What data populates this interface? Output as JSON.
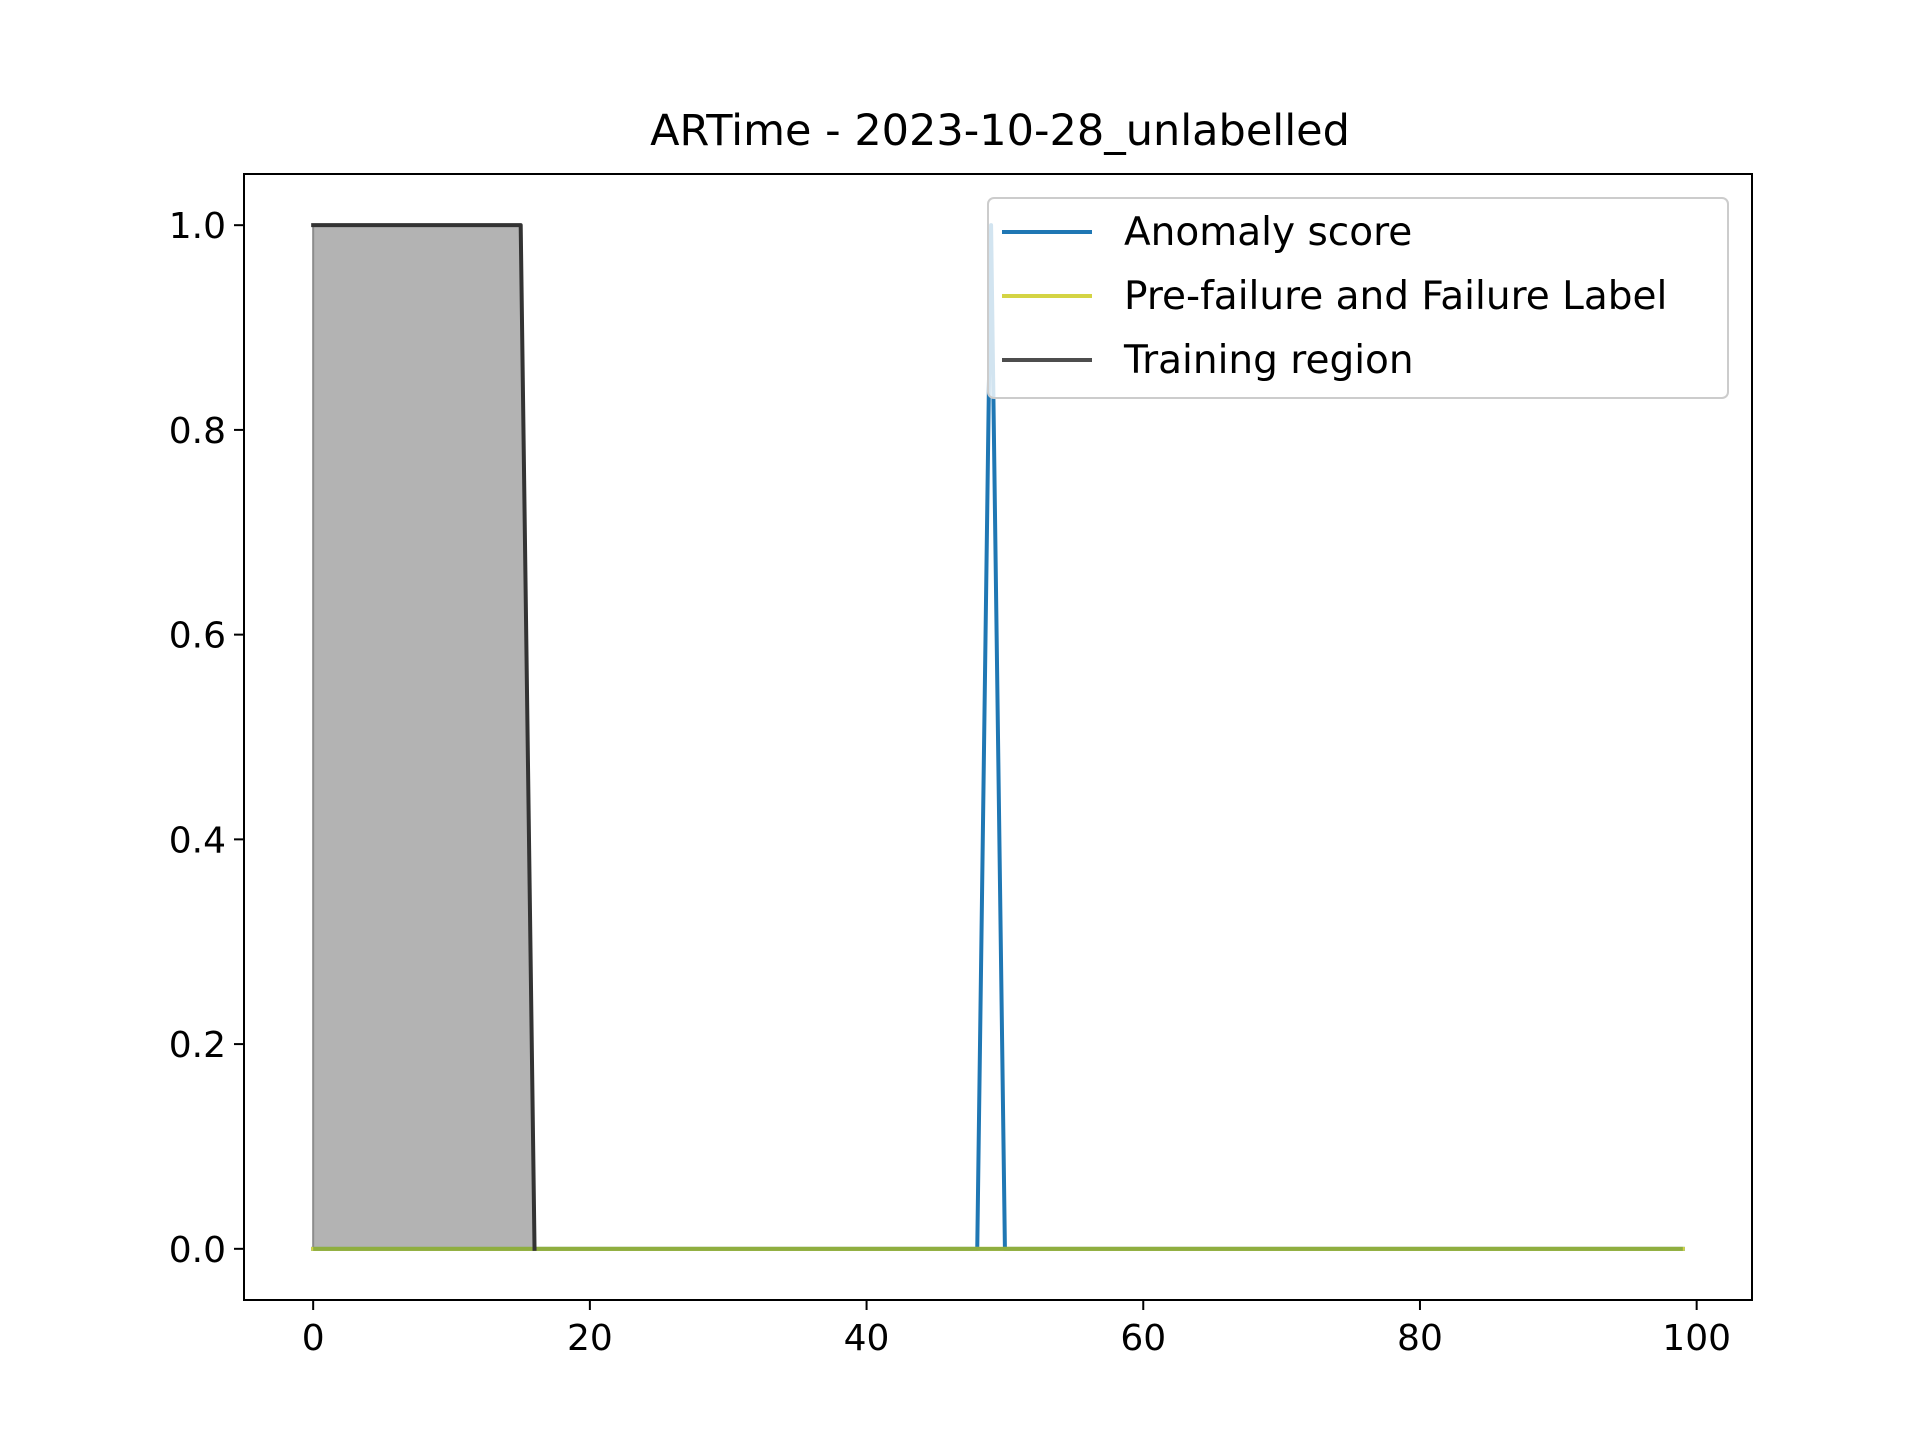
{
  "chart_data": {
    "type": "line",
    "title": "ARTime - 2023-10-28_unlabelled",
    "xlabel": "",
    "ylabel": "",
    "xlim": [
      -5,
      104
    ],
    "ylim": [
      -0.05,
      1.05
    ],
    "xticks": [
      0,
      20,
      40,
      60,
      80,
      100
    ],
    "xtick_labels": [
      "0",
      "20",
      "40",
      "60",
      "80",
      "100"
    ],
    "yticks": [
      0.0,
      0.2,
      0.4,
      0.6,
      0.8,
      1.0
    ],
    "ytick_labels": [
      "0.0",
      "0.2",
      "0.4",
      "0.6",
      "0.8",
      "1.0"
    ],
    "grid": false,
    "legend_position": "top-right",
    "series": [
      {
        "name": "Anomaly score",
        "color": "#1f77b4",
        "x": [
          0,
          48,
          49,
          50,
          99
        ],
        "y": [
          0,
          0,
          1,
          0,
          0
        ]
      },
      {
        "name": "Pre-failure and Failure Label",
        "color": "#d4d444",
        "x": [
          0,
          99
        ],
        "y": [
          0,
          0
        ]
      },
      {
        "name": "Training region",
        "color": "#333333",
        "fill": "#b3b3b3",
        "x": [
          0,
          15,
          16
        ],
        "y": [
          1,
          1,
          0
        ]
      }
    ]
  }
}
